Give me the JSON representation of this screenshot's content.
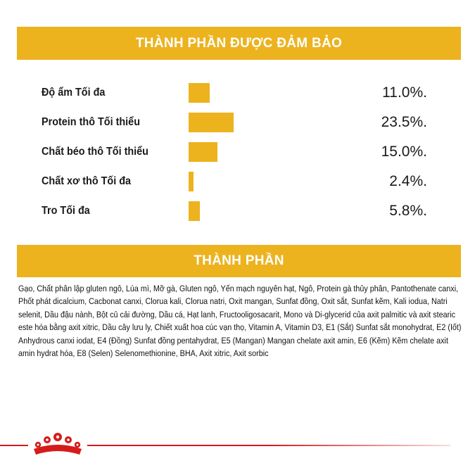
{
  "header": {
    "title": "THÀNH PHẦN ĐƯỢC ĐẢM BẢO"
  },
  "chart_data": {
    "type": "bar",
    "orientation": "horizontal",
    "categories": [
      "Độ ẩm Tối đa",
      "Protein thô Tối thiểu",
      "Chất béo thô Tối thiểu",
      "Chất xơ thô Tối đa",
      "Tro Tối đa"
    ],
    "values": [
      11.0,
      23.5,
      15.0,
      2.4,
      5.8
    ],
    "value_labels": [
      "11.0%.",
      "23.5%.",
      "15.0%.",
      "2.4%.",
      "5.8%."
    ],
    "title": "THÀNH PHẦN ĐƯỢC ĐẢM BẢO",
    "bar_color": "#ecb31f",
    "grid": false
  },
  "ingredients": {
    "title": "THÀNH PHẦN",
    "text": "Gạo, Chất phân lập gluten ngô, Lúa mì, Mỡ gà, Gluten ngô, Yến mạch nguyên hạt, Ngô, Protein gà thủy phân, Pantothenate canxi, Phốt phát dicalcium, Cacbonat canxi, Clorua kali, Clorua natri, Oxit mangan, Sunfat đồng, Oxit sắt, Sunfat kẽm, Kali iodua, Natri selenit, Dầu đậu nành, Bột củ cải đường, Dầu cá, Hạt lanh, Fructooligosacarit, Mono và Di-glycerid của axit palmitic và axit stearic este hóa bằng axit xitric, Dầu cây lưu ly, Chiết xuất hoa cúc vạn thọ, Vitamin A, Vitamin D3, E1 (Sắt) Sunfat sắt monohydrat, E2 (Iốt) Anhydrous canxi iodat, E4 (Đồng) Sunfat đồng pentahydrat, E5 (Mangan) Mangan chelate axit amin, E6 (Kẽm) Kẽm chelate axit amin hydrat hóa, E8 (Selen) Selenomethionine, BHA, Axit xitric, Axit sorbic"
  },
  "footer": {
    "logo_icon": "royal-canin-crown-icon",
    "accent_color": "#d61b1b"
  }
}
